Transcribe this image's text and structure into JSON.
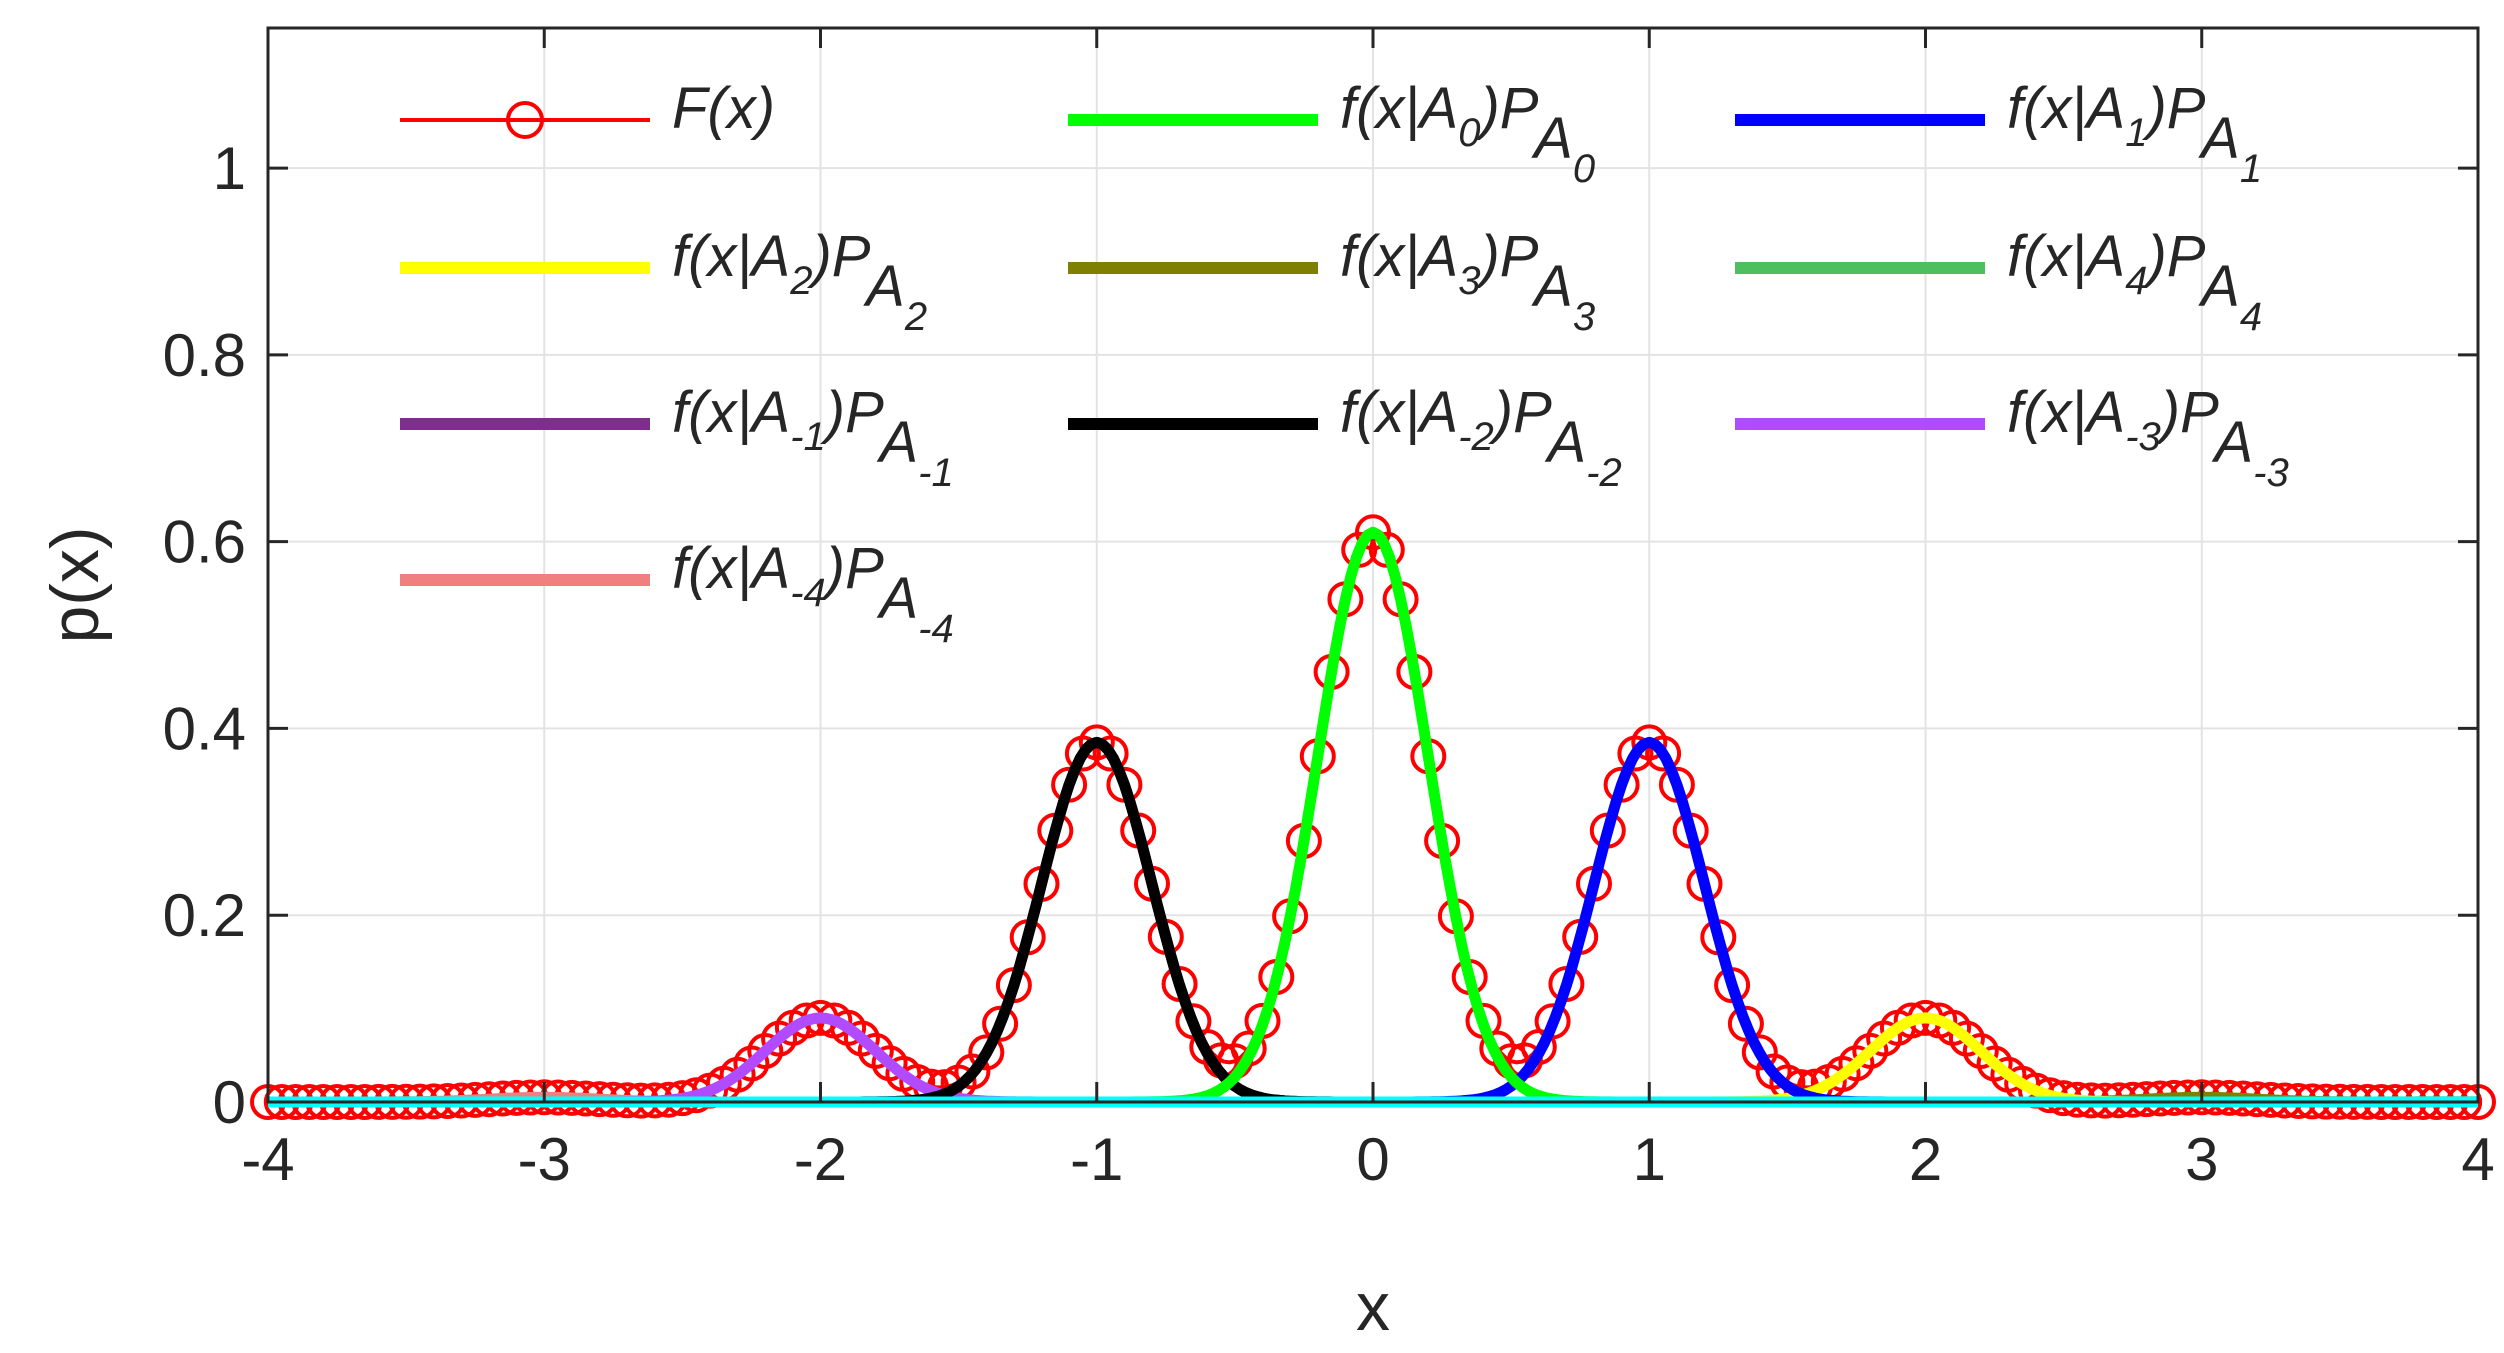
{
  "chart_data": {
    "type": "line",
    "title": "",
    "xlabel": "x",
    "ylabel": "p(x)",
    "xlim": [
      -4,
      4
    ],
    "ylim": [
      0,
      1.15
    ],
    "grid": true,
    "x_ticks": [
      "-4",
      "-3",
      "-2",
      "-1",
      "0",
      "1",
      "2",
      "3",
      "4"
    ],
    "y_ticks": [
      "0",
      "0.2",
      "0.4",
      "0.6",
      "0.8",
      "1"
    ],
    "legend_position": "top, three columns inside axes",
    "sigma": 0.2,
    "series": [
      {
        "name": "F(x)",
        "main": "F(x)",
        "sub": "",
        "color": "#ff0000",
        "style": "circle-markers",
        "center": null,
        "peak": null
      },
      {
        "name": "f(x|A0)PA0",
        "main": "f(x|A",
        "idx": "0",
        "mid": ")P",
        "psub": "A",
        "psubsub": "0",
        "color": "#00ff00",
        "center": 0,
        "peak": 0.61
      },
      {
        "name": "f(x|A1)PA1",
        "main": "f(x|A",
        "idx": "1",
        "mid": ")P",
        "psub": "A",
        "psubsub": "1",
        "color": "#0000ff",
        "center": 1,
        "peak": 0.385
      },
      {
        "name": "f(x|A2)PA2",
        "main": "f(x|A",
        "idx": "2",
        "mid": ")P",
        "psub": "A",
        "psubsub": "2",
        "color": "#ffff00",
        "center": 2,
        "peak": 0.09
      },
      {
        "name": "f(x|A3)PA3",
        "main": "f(x|A",
        "idx": "3",
        "mid": ")P",
        "psub": "A",
        "psubsub": "3",
        "color": "#808000",
        "center": 3,
        "peak": 0.005
      },
      {
        "name": "f(x|A4)PA4",
        "main": "f(x|A",
        "idx": "4",
        "mid": ")P",
        "psub": "A",
        "psubsub": "4",
        "color": "#4dbf5f",
        "center": 4,
        "peak": 0.0003
      },
      {
        "name": "f(x|A-1)PA-1",
        "main": "f(x|A",
        "idx": "-1",
        "mid": ")P",
        "psub": "A",
        "psubsub": "-1",
        "color": "#7e2f8e",
        "center": -1,
        "peak": 0.385
      },
      {
        "name": "f(x|A-2)PA-2",
        "main": "f(x|A",
        "idx": "-2",
        "mid": ")P",
        "psub": "A",
        "psubsub": "-2",
        "color": "#000000",
        "center": -1,
        "peak": 0.385
      },
      {
        "name": "f(x|A-3)PA-3",
        "main": "f(x|A",
        "idx": "-3",
        "mid": ")P",
        "psub": "A",
        "psubsub": "-3",
        "color": "#b04bff",
        "center": -2,
        "peak": 0.09
      },
      {
        "name": "f(x|A-4)PA-4",
        "main": "f(x|A",
        "idx": "-4",
        "mid": ")P",
        "psub": "A",
        "psubsub": "-4",
        "color": "#f08080",
        "center": -3,
        "peak": 0.005
      },
      {
        "name": "baseline",
        "color": "#00ffff",
        "center": null,
        "peak": 0,
        "in_legend": false
      }
    ]
  }
}
